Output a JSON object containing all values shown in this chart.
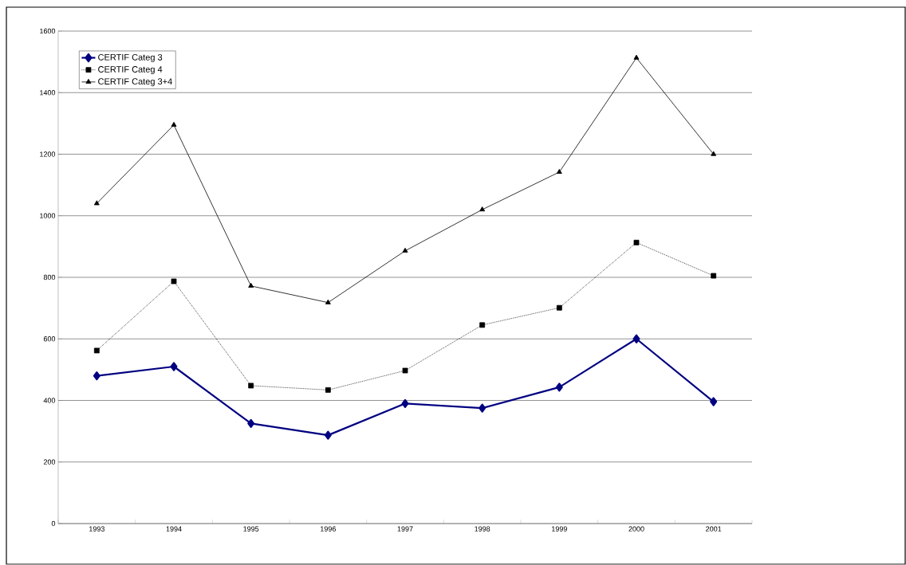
{
  "chart_data": {
    "type": "line",
    "categories": [
      "1993",
      "1994",
      "1995",
      "1996",
      "1997",
      "1998",
      "1999",
      "2000",
      "2001"
    ],
    "series": [
      {
        "name": "CERTIF Categ 3",
        "color": "#000080",
        "marker": "diamond",
        "line_style": "solid",
        "values": [
          480,
          510,
          325,
          287,
          390,
          375,
          443,
          600,
          396
        ]
      },
      {
        "name": "CERTIF Categ 4",
        "color": "#000000",
        "marker": "square",
        "line_style": "dotted",
        "values": [
          562,
          787,
          448,
          434,
          497,
          645,
          701,
          913,
          805
        ]
      },
      {
        "name": "CERTIF Categ 3+4",
        "color": "#000000",
        "marker": "triangle",
        "line_style": "solid",
        "values": [
          1040,
          1295,
          772,
          718,
          886,
          1020,
          1142,
          1513,
          1200
        ]
      }
    ],
    "ylim": [
      0,
      1600
    ],
    "yticks": [
      0,
      200,
      400,
      600,
      800,
      1000,
      1200,
      1400,
      1600
    ],
    "grid": "y",
    "legend": "top left"
  }
}
